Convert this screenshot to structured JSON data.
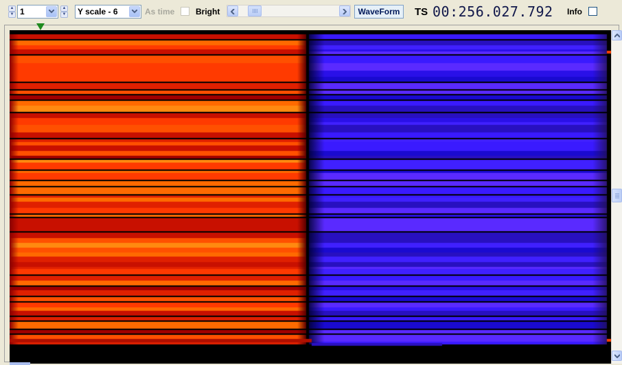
{
  "toolbar": {
    "channel_value": "1",
    "y_scale_value": "Y scale - 6",
    "as_time_label": "As time",
    "as_time_checked": false,
    "bright_label": "Bright",
    "bright_checked": false,
    "waveform_label": "WaveForm",
    "ts_label": "TS",
    "ts_value": "00:256.027.792",
    "info_label": "Info",
    "info_checked": false
  },
  "icons": {
    "spin_up": "spin-up-icon",
    "spin_down": "spin-down-icon",
    "dropdown": "chevron-down-icon",
    "scroll_left": "chevron-left-icon",
    "scroll_right": "chevron-right-icon",
    "scroll_up": "chevron-up-icon",
    "scroll_down": "chevron-down-icon",
    "marker": "triangle-down-icon"
  },
  "colors": {
    "marker": "#1E8A1E",
    "warm_band": "#FF6A00",
    "cool_band": "#3A1AFF",
    "timestamp": "#10174A"
  }
}
